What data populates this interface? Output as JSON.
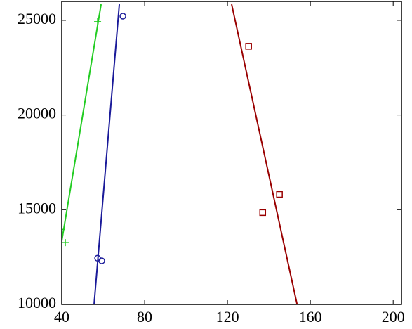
{
  "chart_data": {
    "type": "scatter",
    "xlim": [
      40,
      204
    ],
    "ylim": [
      10000,
      26000
    ],
    "xticks": [
      40,
      80,
      120,
      160,
      200
    ],
    "yticks": [
      10000,
      15000,
      20000,
      25000
    ],
    "series": [
      {
        "color": "#22cc22",
        "marker": "plus",
        "x": [
          41.7,
          40,
          57.3
        ],
        "values": [
          13260,
          13960,
          24930
        ],
        "fit": {
          "x": [
            39.3,
            59
          ],
          "values": [
            12890,
            25850
          ]
        }
      },
      {
        "color": "#1a1a99",
        "marker": "circle",
        "x": [
          57.3,
          59.3,
          69.5
        ],
        "values": [
          12440,
          12300,
          25220
        ],
        "fit": {
          "x": [
            55.6,
            67.8
          ],
          "values": [
            10000,
            25850
          ]
        }
      },
      {
        "color": "#990000",
        "marker": "square",
        "x": [
          130.2,
          137,
          145.1
        ],
        "values": [
          23630,
          14850,
          15810
        ],
        "fit": {
          "x": [
            122,
            153.6
          ],
          "values": [
            25850,
            10000
          ]
        }
      }
    ]
  }
}
